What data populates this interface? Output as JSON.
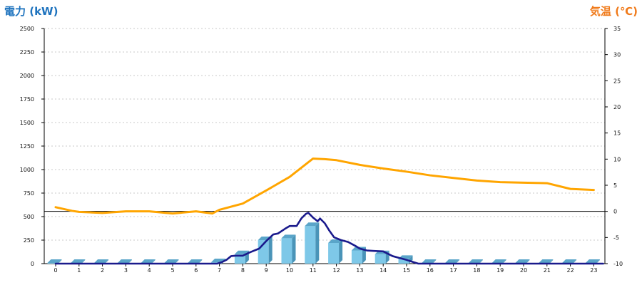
{
  "chart_data": {
    "type": "bar+line",
    "left_axis": {
      "title": "電力 (kW)",
      "ylim": [
        0,
        2500
      ],
      "ticks": [
        0,
        250,
        500,
        750,
        1000,
        1250,
        1500,
        1750,
        2000,
        2250,
        2500
      ],
      "color": "#1e73be"
    },
    "right_axis": {
      "title": "気温 (℃)",
      "ylim": [
        -10,
        35
      ],
      "ticks": [
        -10,
        -5,
        0,
        5,
        10,
        15,
        20,
        25,
        30,
        35
      ],
      "color": "#f07a1a"
    },
    "x_ticks": [
      "0",
      "1",
      "2",
      "3",
      "4",
      "5",
      "6",
      "7",
      "8",
      "9",
      "10",
      "11",
      "12",
      "13",
      "14",
      "15",
      "16",
      "17",
      "18",
      "19",
      "20",
      "21",
      "22",
      "23"
    ],
    "grid": true,
    "bars": {
      "name": "",
      "color": "#7ec8e8",
      "hours": [
        0,
        1,
        2,
        3,
        4,
        5,
        6,
        7,
        8,
        9,
        10,
        11,
        12,
        13,
        14,
        15,
        16,
        17,
        18,
        19,
        20,
        21,
        22,
        23
      ],
      "values": [
        0,
        0,
        0,
        0,
        0,
        0,
        0,
        15,
        100,
        250,
        270,
        400,
        220,
        140,
        100,
        50,
        0,
        0,
        0,
        0,
        0,
        0,
        0,
        0
      ]
    },
    "power_line": {
      "name": "",
      "color": "#1a1a8c",
      "x": [
        6.9,
        7.1,
        7.3,
        7.5,
        7.7,
        8.0,
        8.3,
        8.7,
        9.0,
        9.3,
        9.5,
        9.8,
        10.0,
        10.3,
        10.5,
        10.7,
        10.8,
        11.0,
        11.2,
        11.3,
        11.5,
        11.7,
        11.9,
        12.2,
        12.5,
        12.8,
        13.0,
        13.3,
        13.6,
        14.0,
        14.4,
        14.7,
        15.0,
        15.3,
        15.5
      ],
      "y": [
        0,
        15,
        40,
        80,
        85,
        85,
        120,
        160,
        240,
        310,
        320,
        370,
        400,
        400,
        480,
        530,
        540,
        490,
        450,
        480,
        430,
        350,
        280,
        250,
        230,
        190,
        160,
        140,
        135,
        130,
        80,
        60,
        40,
        15,
        0
      ]
    },
    "temperature_line": {
      "name": "",
      "color": "#ffa500",
      "x": [
        0,
        0.7,
        1,
        2,
        3,
        4,
        5,
        6,
        6.7,
        7,
        8,
        9,
        10,
        11,
        11.5,
        12,
        13,
        14,
        15,
        16,
        17,
        18,
        19,
        20,
        21,
        22,
        22.5,
        23
      ],
      "y": [
        0.8,
        0.1,
        -0.1,
        -0.3,
        0,
        0,
        -0.4,
        0,
        -0.4,
        0.3,
        1.5,
        4,
        6.6,
        10.1,
        10,
        9.8,
        8.9,
        8.2,
        7.6,
        6.9,
        6.4,
        5.9,
        5.6,
        5.5,
        5.4,
        4.3,
        4.2,
        4.1
      ]
    }
  }
}
